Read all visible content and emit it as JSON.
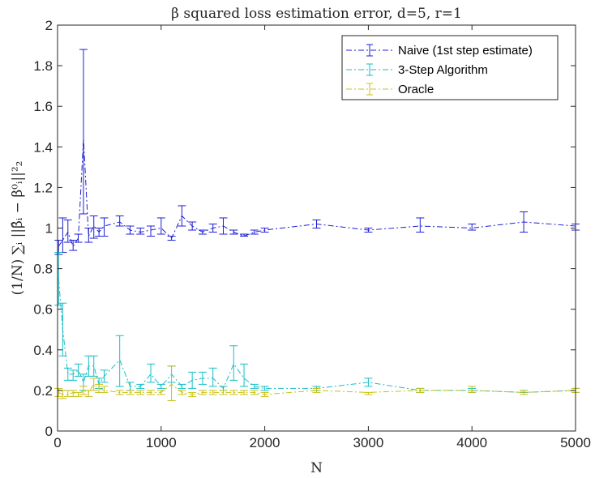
{
  "chart_data": {
    "type": "line",
    "title": "β squared loss estimation error, d=5, r=1",
    "xlabel": "N",
    "ylabel": "(1/N) ∑ᵢ ||β̂ᵢ − β⁰ᵢ||²₂",
    "xlim": [
      0,
      5000
    ],
    "ylim": [
      0,
      2
    ],
    "xticks": [
      0,
      1000,
      2000,
      3000,
      4000,
      5000
    ],
    "xtick_labels": [
      "0",
      "1000",
      "2000",
      "3000",
      "4000",
      "5000"
    ],
    "yticks": [
      0,
      0.2,
      0.4,
      0.6,
      0.8,
      1,
      1.2,
      1.4,
      1.6,
      1.8,
      2
    ],
    "ytick_labels": [
      "0",
      "0.2",
      "0.4",
      "0.6",
      "0.8",
      "1",
      "1.2",
      "1.4",
      "1.6",
      "1.8",
      "2"
    ],
    "grid": false,
    "legend_position": "top-right",
    "series": [
      {
        "name": "Naive (1st step estimate)",
        "color": "#1f1fd4",
        "line_style": "dash-dot",
        "points": [
          {
            "x": 10,
            "y": 0.91,
            "lo": 0.87,
            "hi": 0.94
          },
          {
            "x": 50,
            "y": 0.94,
            "lo": 0.88,
            "hi": 1.05
          },
          {
            "x": 100,
            "y": 0.98,
            "lo": 0.93,
            "hi": 1.04
          },
          {
            "x": 150,
            "y": 0.91,
            "lo": 0.89,
            "hi": 0.94
          },
          {
            "x": 200,
            "y": 0.95,
            "lo": 0.93,
            "hi": 0.97
          },
          {
            "x": 250,
            "y": 1.44,
            "lo": 1.07,
            "hi": 1.88
          },
          {
            "x": 300,
            "y": 0.96,
            "lo": 0.93,
            "hi": 1.0
          },
          {
            "x": 350,
            "y": 1.01,
            "lo": 0.95,
            "hi": 1.06
          },
          {
            "x": 400,
            "y": 0.98,
            "lo": 0.96,
            "hi": 1.0
          },
          {
            "x": 450,
            "y": 1.01,
            "lo": 0.96,
            "hi": 1.05
          },
          {
            "x": 600,
            "y": 1.03,
            "lo": 1.01,
            "hi": 1.06
          },
          {
            "x": 700,
            "y": 0.99,
            "lo": 0.97,
            "hi": 1.01
          },
          {
            "x": 800,
            "y": 0.98,
            "lo": 0.97,
            "hi": 1.0
          },
          {
            "x": 900,
            "y": 0.99,
            "lo": 0.96,
            "hi": 1.01
          },
          {
            "x": 1000,
            "y": 1.0,
            "lo": 0.97,
            "hi": 1.05
          },
          {
            "x": 1100,
            "y": 0.95,
            "lo": 0.94,
            "hi": 0.96
          },
          {
            "x": 1200,
            "y": 1.06,
            "lo": 1.01,
            "hi": 1.11
          },
          {
            "x": 1300,
            "y": 1.01,
            "lo": 0.99,
            "hi": 1.03
          },
          {
            "x": 1400,
            "y": 0.98,
            "lo": 0.97,
            "hi": 0.99
          },
          {
            "x": 1500,
            "y": 1.0,
            "lo": 0.98,
            "hi": 1.02
          },
          {
            "x": 1600,
            "y": 1.01,
            "lo": 0.97,
            "hi": 1.05
          },
          {
            "x": 1700,
            "y": 0.98,
            "lo": 0.97,
            "hi": 0.99
          },
          {
            "x": 1800,
            "y": 0.96,
            "lo": 0.96,
            "hi": 0.97
          },
          {
            "x": 1900,
            "y": 0.98,
            "lo": 0.97,
            "hi": 0.99
          },
          {
            "x": 2000,
            "y": 0.99,
            "lo": 0.98,
            "hi": 1.0
          },
          {
            "x": 2500,
            "y": 1.02,
            "lo": 1.0,
            "hi": 1.04
          },
          {
            "x": 3000,
            "y": 0.99,
            "lo": 0.98,
            "hi": 1.0
          },
          {
            "x": 3500,
            "y": 1.01,
            "lo": 0.98,
            "hi": 1.05
          },
          {
            "x": 4000,
            "y": 1.0,
            "lo": 0.99,
            "hi": 1.02
          },
          {
            "x": 4500,
            "y": 1.03,
            "lo": 0.98,
            "hi": 1.08
          },
          {
            "x": 5000,
            "y": 1.01,
            "lo": 0.99,
            "hi": 1.02
          }
        ]
      },
      {
        "name": "3-Step Algorithm",
        "color": "#17bec7",
        "line_style": "dash-dot",
        "points": [
          {
            "x": 10,
            "y": 0.75,
            "lo": 0.62,
            "hi": 0.88
          },
          {
            "x": 50,
            "y": 0.5,
            "lo": 0.37,
            "hi": 0.63
          },
          {
            "x": 100,
            "y": 0.28,
            "lo": 0.25,
            "hi": 0.31
          },
          {
            "x": 150,
            "y": 0.28,
            "lo": 0.25,
            "hi": 0.3
          },
          {
            "x": 200,
            "y": 0.3,
            "lo": 0.27,
            "hi": 0.33
          },
          {
            "x": 250,
            "y": 0.24,
            "lo": 0.2,
            "hi": 0.28
          },
          {
            "x": 300,
            "y": 0.32,
            "lo": 0.27,
            "hi": 0.37
          },
          {
            "x": 350,
            "y": 0.32,
            "lo": 0.27,
            "hi": 0.37
          },
          {
            "x": 400,
            "y": 0.23,
            "lo": 0.21,
            "hi": 0.26
          },
          {
            "x": 450,
            "y": 0.27,
            "lo": 0.24,
            "hi": 0.3
          },
          {
            "x": 600,
            "y": 0.35,
            "lo": 0.22,
            "hi": 0.47
          },
          {
            "x": 700,
            "y": 0.22,
            "lo": 0.2,
            "hi": 0.24
          },
          {
            "x": 800,
            "y": 0.22,
            "lo": 0.21,
            "hi": 0.23
          },
          {
            "x": 900,
            "y": 0.28,
            "lo": 0.24,
            "hi": 0.33
          },
          {
            "x": 1000,
            "y": 0.22,
            "lo": 0.21,
            "hi": 0.23
          },
          {
            "x": 1100,
            "y": 0.28,
            "lo": 0.24,
            "hi": 0.32
          },
          {
            "x": 1200,
            "y": 0.22,
            "lo": 0.21,
            "hi": 0.23
          },
          {
            "x": 1300,
            "y": 0.25,
            "lo": 0.21,
            "hi": 0.29
          },
          {
            "x": 1400,
            "y": 0.26,
            "lo": 0.23,
            "hi": 0.29
          },
          {
            "x": 1500,
            "y": 0.26,
            "lo": 0.22,
            "hi": 0.31
          },
          {
            "x": 1600,
            "y": 0.21,
            "lo": 0.2,
            "hi": 0.22
          },
          {
            "x": 1700,
            "y": 0.33,
            "lo": 0.25,
            "hi": 0.42
          },
          {
            "x": 1800,
            "y": 0.26,
            "lo": 0.22,
            "hi": 0.33
          },
          {
            "x": 1900,
            "y": 0.22,
            "lo": 0.21,
            "hi": 0.23
          },
          {
            "x": 2000,
            "y": 0.21,
            "lo": 0.2,
            "hi": 0.22
          },
          {
            "x": 2500,
            "y": 0.21,
            "lo": 0.2,
            "hi": 0.22
          },
          {
            "x": 3000,
            "y": 0.24,
            "lo": 0.22,
            "hi": 0.26
          },
          {
            "x": 3500,
            "y": 0.2,
            "lo": 0.19,
            "hi": 0.21
          },
          {
            "x": 4000,
            "y": 0.2,
            "lo": 0.19,
            "hi": 0.21
          },
          {
            "x": 4500,
            "y": 0.19,
            "lo": 0.19,
            "hi": 0.2
          },
          {
            "x": 5000,
            "y": 0.2,
            "lo": 0.19,
            "hi": 0.21
          }
        ]
      },
      {
        "name": "Oracle",
        "color": "#c8c016",
        "line_style": "dash-dot",
        "points": [
          {
            "x": 10,
            "y": 0.19,
            "lo": 0.17,
            "hi": 0.21
          },
          {
            "x": 50,
            "y": 0.18,
            "lo": 0.16,
            "hi": 0.2
          },
          {
            "x": 100,
            "y": 0.18,
            "lo": 0.17,
            "hi": 0.2
          },
          {
            "x": 150,
            "y": 0.19,
            "lo": 0.17,
            "hi": 0.2
          },
          {
            "x": 200,
            "y": 0.18,
            "lo": 0.17,
            "hi": 0.19
          },
          {
            "x": 250,
            "y": 0.2,
            "lo": 0.18,
            "hi": 0.22
          },
          {
            "x": 300,
            "y": 0.19,
            "lo": 0.17,
            "hi": 0.2
          },
          {
            "x": 350,
            "y": 0.23,
            "lo": 0.2,
            "hi": 0.26
          },
          {
            "x": 400,
            "y": 0.21,
            "lo": 0.19,
            "hi": 0.23
          },
          {
            "x": 450,
            "y": 0.2,
            "lo": 0.19,
            "hi": 0.22
          },
          {
            "x": 600,
            "y": 0.19,
            "lo": 0.18,
            "hi": 0.2
          },
          {
            "x": 700,
            "y": 0.19,
            "lo": 0.18,
            "hi": 0.2
          },
          {
            "x": 800,
            "y": 0.19,
            "lo": 0.18,
            "hi": 0.2
          },
          {
            "x": 900,
            "y": 0.19,
            "lo": 0.18,
            "hi": 0.2
          },
          {
            "x": 1000,
            "y": 0.19,
            "lo": 0.18,
            "hi": 0.2
          },
          {
            "x": 1100,
            "y": 0.23,
            "lo": 0.15,
            "hi": 0.32
          },
          {
            "x": 1200,
            "y": 0.19,
            "lo": 0.18,
            "hi": 0.2
          },
          {
            "x": 1300,
            "y": 0.18,
            "lo": 0.17,
            "hi": 0.19
          },
          {
            "x": 1400,
            "y": 0.19,
            "lo": 0.18,
            "hi": 0.2
          },
          {
            "x": 1500,
            "y": 0.19,
            "lo": 0.18,
            "hi": 0.2
          },
          {
            "x": 1600,
            "y": 0.19,
            "lo": 0.18,
            "hi": 0.2
          },
          {
            "x": 1700,
            "y": 0.19,
            "lo": 0.18,
            "hi": 0.2
          },
          {
            "x": 1800,
            "y": 0.19,
            "lo": 0.18,
            "hi": 0.2
          },
          {
            "x": 1900,
            "y": 0.19,
            "lo": 0.18,
            "hi": 0.2
          },
          {
            "x": 2000,
            "y": 0.18,
            "lo": 0.17,
            "hi": 0.19
          },
          {
            "x": 2500,
            "y": 0.2,
            "lo": 0.19,
            "hi": 0.21
          },
          {
            "x": 3000,
            "y": 0.19,
            "lo": 0.18,
            "hi": 0.19
          },
          {
            "x": 3500,
            "y": 0.2,
            "lo": 0.19,
            "hi": 0.21
          },
          {
            "x": 4000,
            "y": 0.2,
            "lo": 0.19,
            "hi": 0.22
          },
          {
            "x": 4500,
            "y": 0.19,
            "lo": 0.18,
            "hi": 0.2
          },
          {
            "x": 5000,
            "y": 0.2,
            "lo": 0.19,
            "hi": 0.21
          }
        ]
      }
    ]
  }
}
